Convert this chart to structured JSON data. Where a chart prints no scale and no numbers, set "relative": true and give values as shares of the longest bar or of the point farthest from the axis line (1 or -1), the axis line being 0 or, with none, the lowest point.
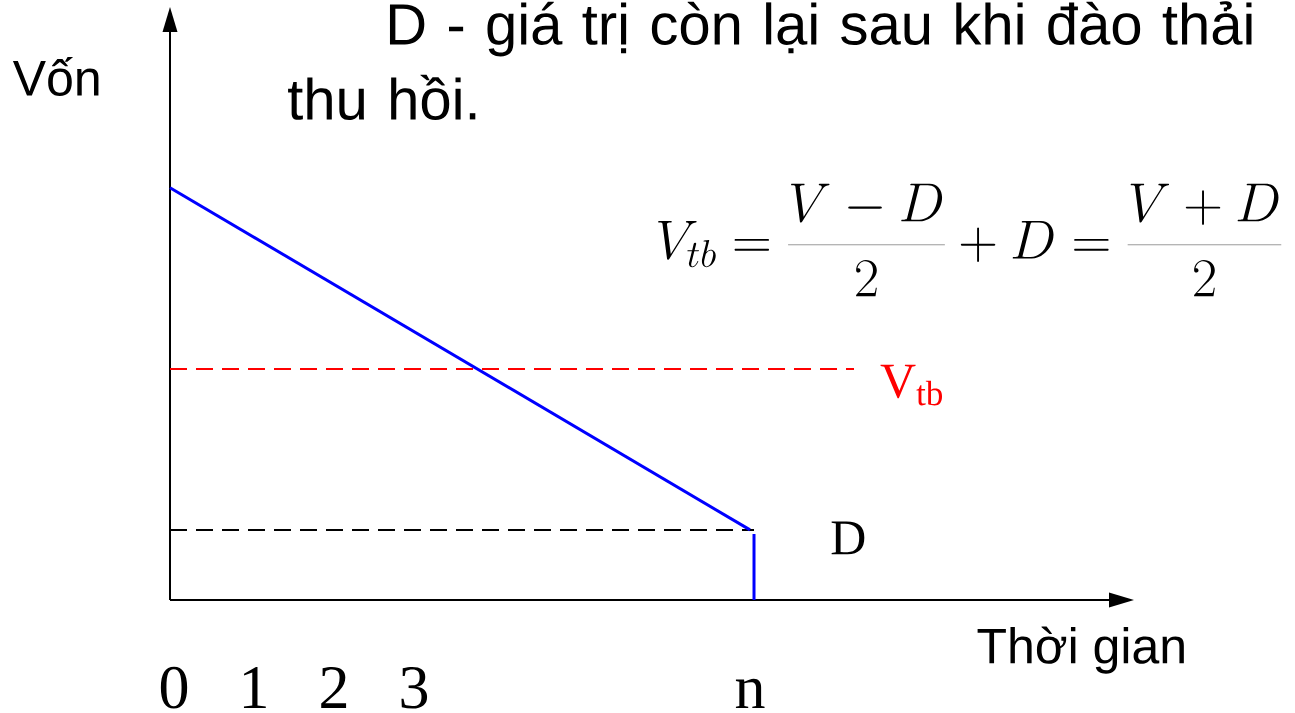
{
  "chart_data": {
    "type": "line",
    "relative": true,
    "xlabel": "Thời gian",
    "ylabel": "Vốn",
    "series": [
      {
        "color": "#0000ff",
        "x": [
          -0.05,
          7.2
        ],
        "values": [
          1,
          0.17
        ]
      },
      {
        "color": "#0000ff",
        "x": [
          7.25,
          7.25
        ],
        "values": [
          0.16,
          0
        ]
      }
    ],
    "xlim": [
      -0.05,
      11.7
    ],
    "xticks": [
      0,
      1,
      2,
      3,
      {
        "value": 7.2,
        "label": "n"
      }
    ],
    "ref_lines": [
      {
        "axis": "y",
        "value": 0.56,
        "label": "V$_{tb}$",
        "color": "#ff0000",
        "line_style": "dashed"
      },
      {
        "axis": "y",
        "value": 0.17,
        "color": "#000000",
        "line_style": "dashed"
      }
    ],
    "annotations": [
      "D - giá trị còn lại sau khi đào thải thu hồi.",
      {
        "text": "D",
        "x": 7.2,
        "y": 0.17
      },
      "V_{tb} = \\frac{V-D}{2} + D = \\frac{V+D}{2}"
    ]
  }
}
